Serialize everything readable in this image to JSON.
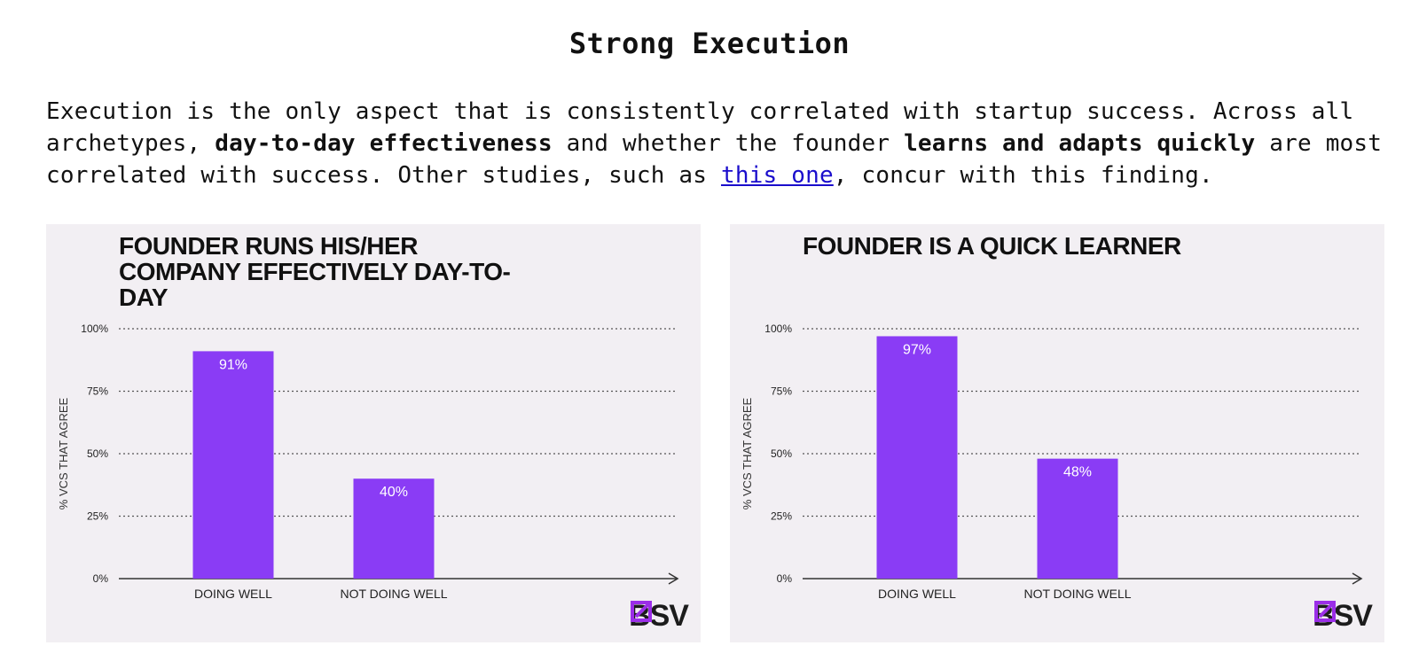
{
  "heading": "Strong Execution",
  "paragraph": {
    "t1": "Execution is the only aspect that is consistently correlated with startup success. Across all archetypes, ",
    "b1": "day-to-day effectiveness",
    "t2": " and whether the founder ",
    "b2": "learns and adapts quickly",
    "t3": " are most correlated with success. Other studies, such as ",
    "link": "this one",
    "t4": ", concur with this finding."
  },
  "colors": {
    "bar": "#8a3cf5",
    "card_bg": "#f2eff3",
    "link": "#1a0dcc",
    "logo_icon": "#9b2ee8"
  },
  "logo": {
    "icon": "bsv-logo-icon",
    "text": "BSV"
  },
  "chart_data": [
    {
      "type": "bar",
      "title": "FOUNDER RUNS HIS/HER COMPANY EFFECTIVELY DAY-TO-DAY",
      "ylabel": "% VCS THAT AGREE",
      "xlabel": "",
      "categories": [
        "DOING WELL",
        "NOT DOING WELL"
      ],
      "values": [
        91,
        40
      ],
      "value_labels": [
        "91%",
        "40%"
      ],
      "yticks": [
        "0%",
        "25%",
        "50%",
        "75%",
        "100%"
      ],
      "ylim": [
        0,
        100
      ],
      "grid": "dotted horizontal"
    },
    {
      "type": "bar",
      "title": "FOUNDER IS A QUICK LEARNER",
      "ylabel": "% VCS THAT AGREE",
      "xlabel": "",
      "categories": [
        "DOING WELL",
        "NOT DOING WELL"
      ],
      "values": [
        97,
        48
      ],
      "value_labels": [
        "97%",
        "48%"
      ],
      "yticks": [
        "0%",
        "25%",
        "50%",
        "75%",
        "100%"
      ],
      "ylim": [
        0,
        100
      ],
      "grid": "dotted horizontal"
    }
  ]
}
